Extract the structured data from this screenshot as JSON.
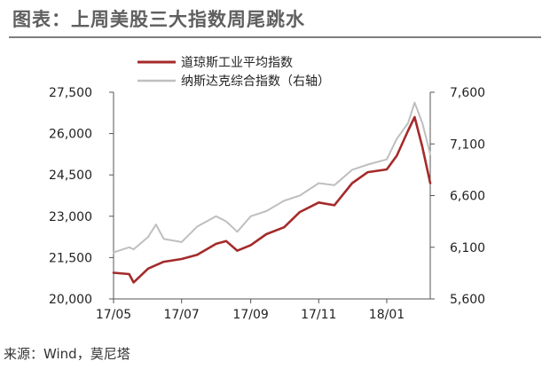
{
  "header": {
    "title": "图表：上周美股三大指数周尾跳水"
  },
  "footer": {
    "source": "来源：Wind，莫尼塔"
  },
  "colors": {
    "dow": "#a52a2a",
    "nasdaq": "#bfbfbf",
    "axis": "#555555"
  },
  "chart_data": {
    "type": "line",
    "title": "",
    "xlabel": "",
    "ylabel": "",
    "x_ticks": [
      "17/05",
      "17/07",
      "17/09",
      "17/11",
      "18/01"
    ],
    "y_left_ticks": [
      "20,000",
      "21,500",
      "23,000",
      "24,500",
      "26,000",
      "27,500"
    ],
    "y_right_ticks": [
      "5,600",
      "6,100",
      "6,600",
      "7,100",
      "7,600"
    ],
    "y_left_range": [
      20000,
      27500
    ],
    "y_right_range": [
      5600,
      7600
    ],
    "x_range": [
      "2017-05-01",
      "2018-02-09"
    ],
    "legend_position": "top-center",
    "grid": false,
    "series": [
      {
        "name": "道琼斯工业平均指数",
        "axis": "left",
        "color": "#a52a2a",
        "x": [
          "2017-05-01",
          "2017-05-15",
          "2017-05-19",
          "2017-06-01",
          "2017-06-15",
          "2017-07-01",
          "2017-07-15",
          "2017-08-01",
          "2017-08-10",
          "2017-08-20",
          "2017-09-01",
          "2017-09-15",
          "2017-10-01",
          "2017-10-15",
          "2017-11-01",
          "2017-11-15",
          "2017-12-01",
          "2017-12-15",
          "2018-01-01",
          "2018-01-10",
          "2018-01-20",
          "2018-01-26",
          "2018-02-02",
          "2018-02-09"
        ],
        "y": [
          20950,
          20900,
          20600,
          21100,
          21350,
          21450,
          21600,
          22000,
          22100,
          21750,
          21950,
          22350,
          22600,
          23150,
          23500,
          23400,
          24200,
          24600,
          24700,
          25200,
          26100,
          26600,
          25500,
          24200
        ]
      },
      {
        "name": "纳斯达克综合指数（右轴）",
        "axis": "right",
        "color": "#bfbfbf",
        "x": [
          "2017-05-01",
          "2017-05-15",
          "2017-05-19",
          "2017-06-01",
          "2017-06-08",
          "2017-06-15",
          "2017-07-01",
          "2017-07-15",
          "2017-08-01",
          "2017-08-10",
          "2017-08-20",
          "2017-09-01",
          "2017-09-15",
          "2017-10-01",
          "2017-10-15",
          "2017-11-01",
          "2017-11-15",
          "2017-12-01",
          "2017-12-15",
          "2018-01-01",
          "2018-01-10",
          "2018-01-20",
          "2018-01-26",
          "2018-02-02",
          "2018-02-09"
        ],
        "y": [
          6050,
          6100,
          6080,
          6200,
          6320,
          6180,
          6150,
          6300,
          6400,
          6350,
          6250,
          6400,
          6450,
          6550,
          6600,
          6720,
          6700,
          6850,
          6900,
          6950,
          7150,
          7300,
          7500,
          7300,
          7000
        ]
      }
    ]
  }
}
